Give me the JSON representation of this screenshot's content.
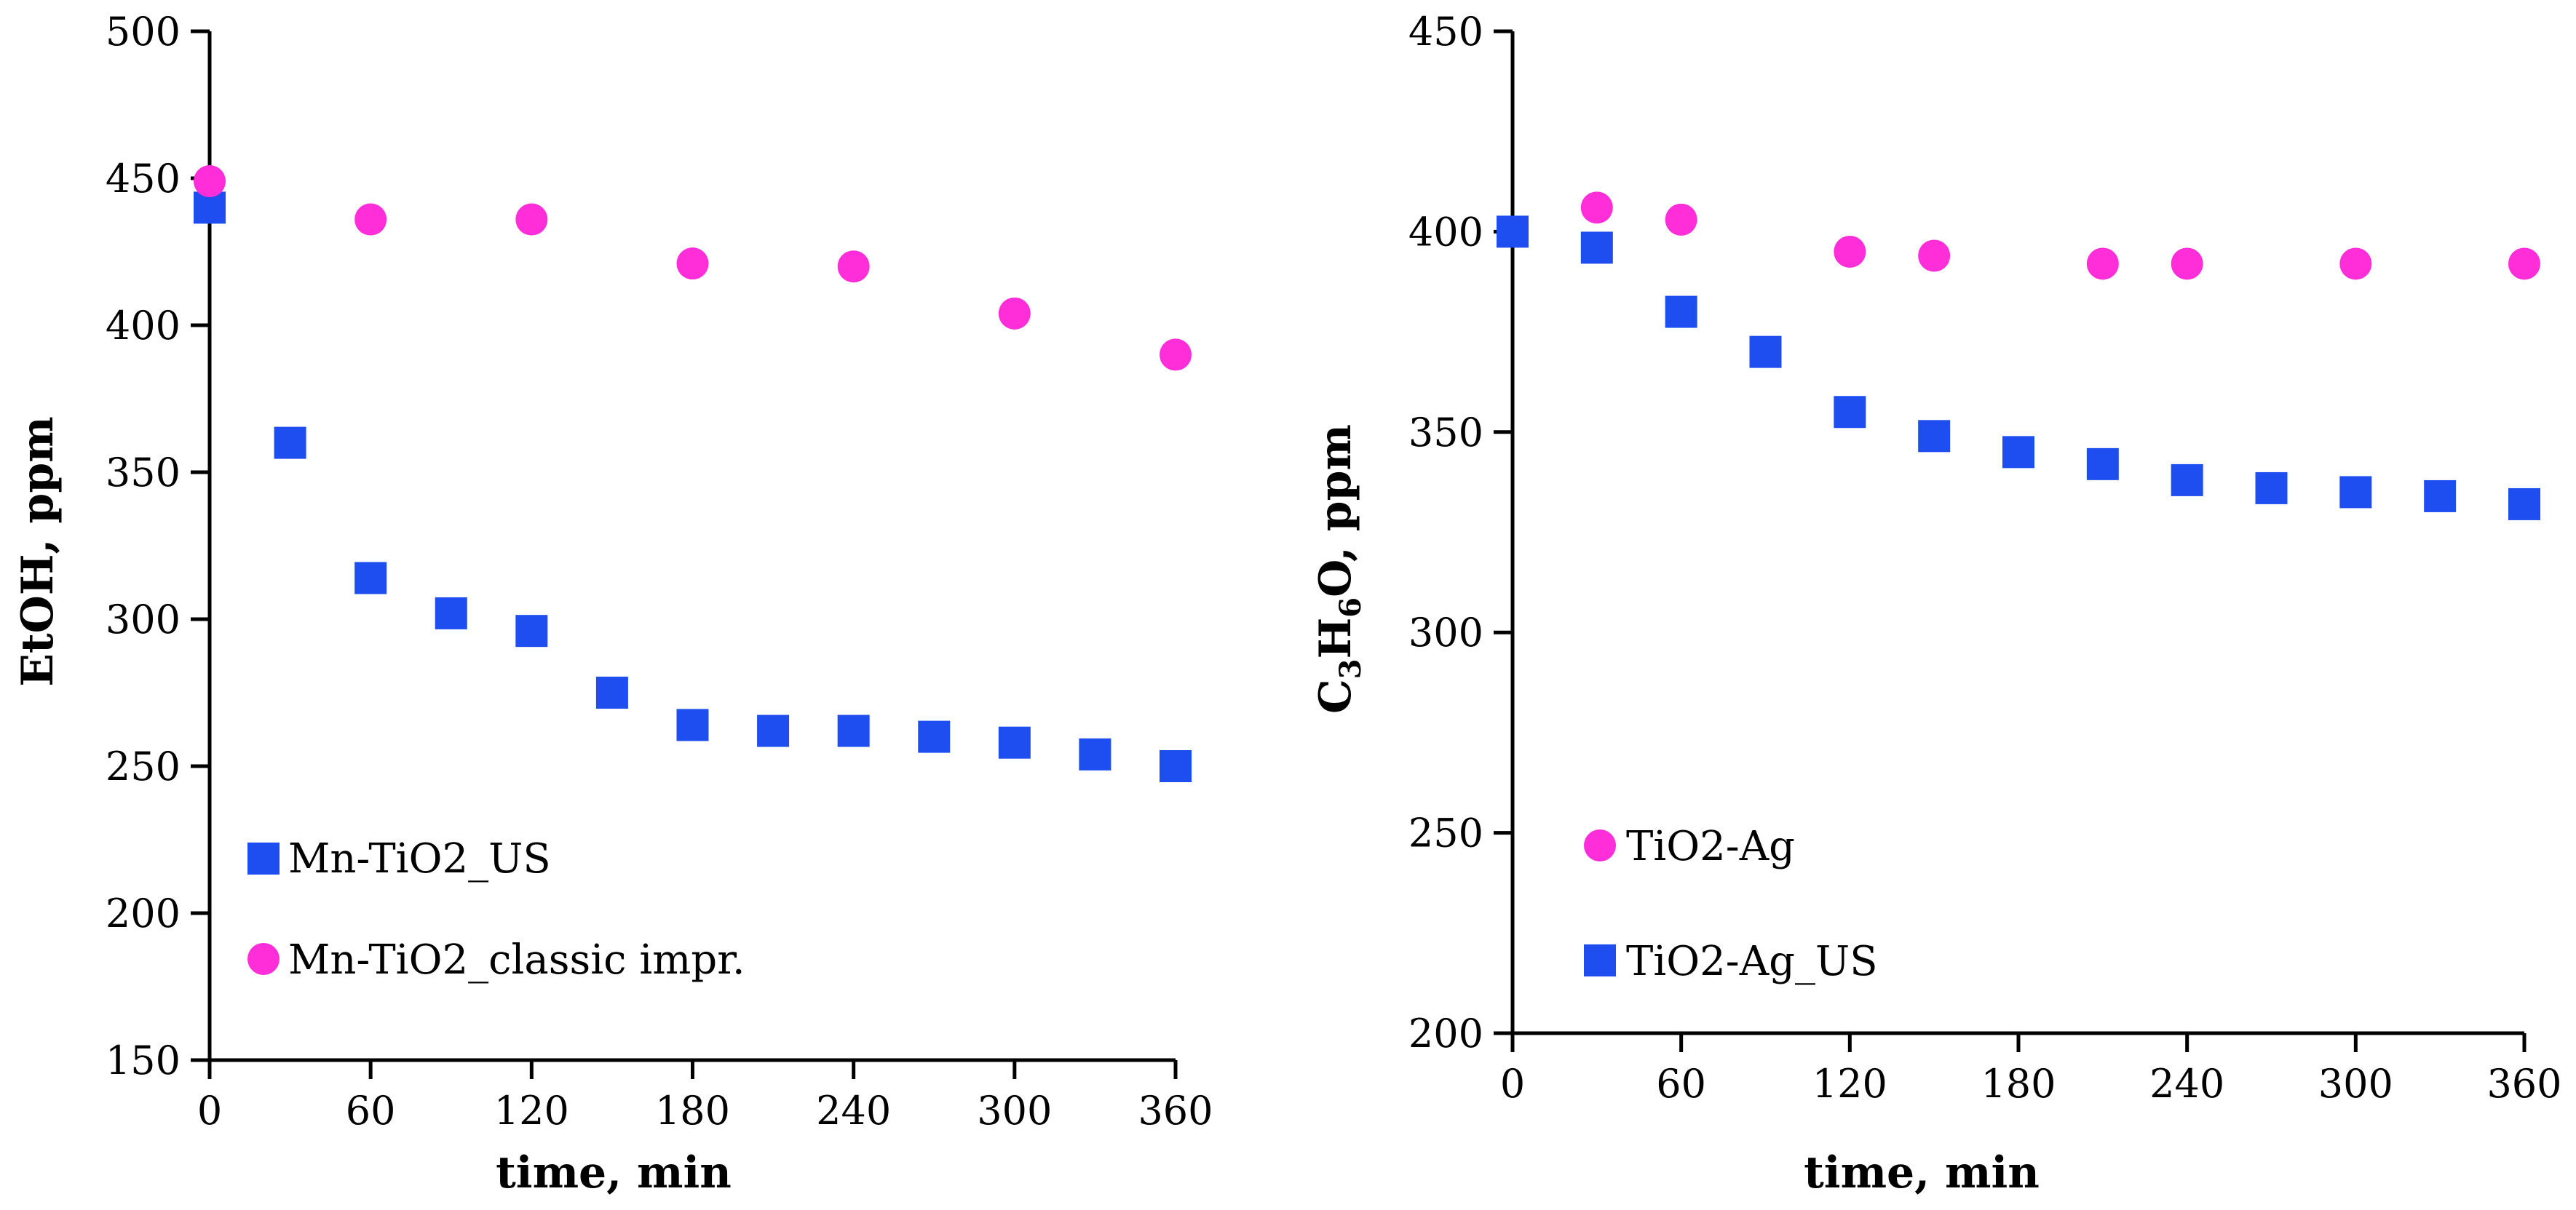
{
  "chart_data": [
    {
      "type": "scatter",
      "xlabel": "time, min",
      "ylabel": "EtOH, ppm",
      "xlim": [
        0,
        360
      ],
      "ylim": [
        150,
        500
      ],
      "xticks": [
        0,
        60,
        120,
        180,
        240,
        300,
        360
      ],
      "yticks": [
        150,
        200,
        250,
        300,
        350,
        400,
        450,
        500
      ],
      "legend_position": "bottom-left",
      "series": [
        {
          "name": "Mn-TiO2_US",
          "marker": "square",
          "color": "#1f4ef0",
          "x": [
            0,
            30,
            60,
            90,
            120,
            150,
            180,
            210,
            240,
            270,
            300,
            330,
            360
          ],
          "y": [
            440,
            360,
            314,
            302,
            296,
            275,
            264,
            262,
            262,
            260,
            258,
            254,
            250
          ]
        },
        {
          "name": "Mn-TiO2_classic impr.",
          "marker": "circle",
          "color": "#ff2ed9",
          "x": [
            0,
            60,
            120,
            180,
            240,
            300,
            360
          ],
          "y": [
            449,
            436,
            436,
            421,
            420,
            404,
            390
          ]
        }
      ]
    },
    {
      "type": "scatter",
      "xlabel": "time, min",
      "ylabel": {
        "p1": "C",
        "s1": "3",
        "p2": "H",
        "s2": "6",
        "p3": "O, ppm"
      },
      "xlim": [
        0,
        360
      ],
      "ylim": [
        200,
        450
      ],
      "xticks": [
        0,
        60,
        120,
        180,
        240,
        300,
        360
      ],
      "yticks": [
        200,
        250,
        300,
        350,
        400,
        450
      ],
      "legend_position": "bottom-left",
      "series": [
        {
          "name": "TiO2-Ag",
          "marker": "circle",
          "color": "#ff2ed9",
          "x": [
            30,
            60,
            120,
            150,
            210,
            240,
            300,
            360
          ],
          "y": [
            406,
            403,
            395,
            394,
            392,
            392,
            392,
            392
          ]
        },
        {
          "name": "TiO2-Ag_US",
          "marker": "square",
          "color": "#1f4ef0",
          "x": [
            0,
            30,
            60,
            90,
            120,
            150,
            180,
            210,
            240,
            270,
            300,
            330,
            360
          ],
          "y": [
            400,
            396,
            380,
            370,
            355,
            349,
            345,
            342,
            338,
            336,
            335,
            334,
            332
          ]
        }
      ]
    }
  ]
}
